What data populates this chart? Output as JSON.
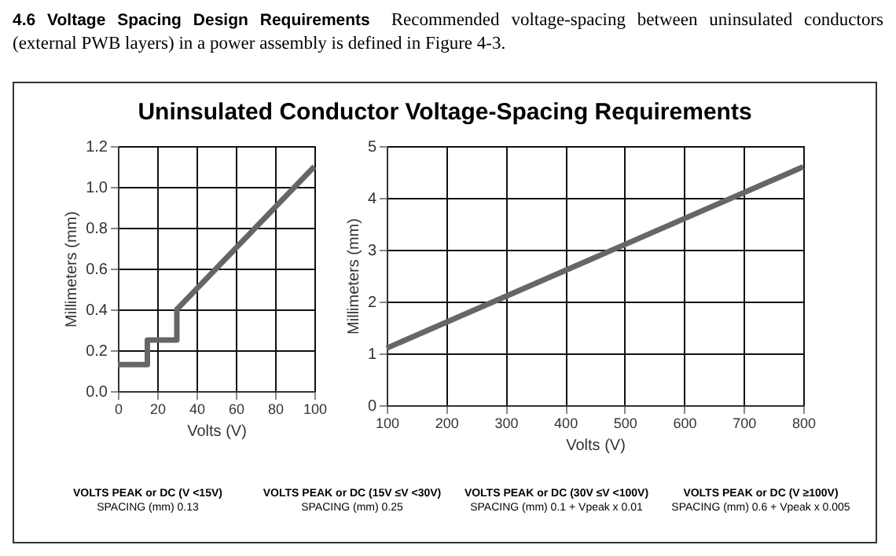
{
  "chart_data": [
    {
      "type": "line",
      "title": "Uninsulated Conductor Voltage-Spacing Requirements",
      "xlabel": "Volts (V)",
      "ylabel": "Millimeters (mm)",
      "annotations": [
        "4.6 Voltage Spacing Design Requirements",
        "Recommended voltage-spacing between uninsulated conductors (external PWB layers) in a power assembly is defined in Figure 4-3."
      ],
      "series": [
        {
          "color": "#666666",
          "x": [
            0,
            15,
            15,
            30,
            30,
            100
          ],
          "values": [
            0.13,
            0.13,
            0.25,
            0.25,
            0.4,
            1.1
          ]
        }
      ],
      "xlim": [
        0,
        100
      ],
      "xticks": [
        0,
        20,
        40,
        60,
        80,
        100
      ],
      "ylim": [
        0,
        1.2
      ],
      "yticks": [
        {
          "value": 0,
          "label": "0.0"
        },
        0.2,
        0.4,
        0.6,
        0.8,
        {
          "value": 1,
          "label": "1.0"
        },
        1.2
      ],
      "grid": true,
      "legend": false,
      "marker": "none",
      "line_style": "solid"
    },
    {
      "type": "line",
      "xlabel": "Volts (V)",
      "ylabel": "Millimeters (mm)",
      "annotations": [
        "VOLTS PEAK or DC (V <15V)",
        "SPACING (mm) 0.13",
        "VOLTS PEAK or DC (15V ≤V <30V)",
        "SPACING (mm) 0.25",
        "VOLTS PEAK or DC (30V ≤V <100V)",
        "SPACING (mm) 0.1 + Vpeak x 0.01",
        "VOLTS PEAK or DC (V ≥100V)",
        "SPACING (mm) 0.6 + Vpeak x 0.005"
      ],
      "series": [
        {
          "color": "#666666",
          "x": [
            100,
            800
          ],
          "values": [
            1.1,
            4.6
          ]
        }
      ],
      "xlim": [
        100,
        800
      ],
      "xticks": [
        100,
        200,
        300,
        400,
        500,
        600,
        700,
        800
      ],
      "ylim": [
        0,
        5
      ],
      "yticks": [
        0,
        1,
        2,
        3,
        4,
        5
      ],
      "grid": true,
      "legend": false,
      "marker": "none",
      "line_style": "solid"
    }
  ]
}
